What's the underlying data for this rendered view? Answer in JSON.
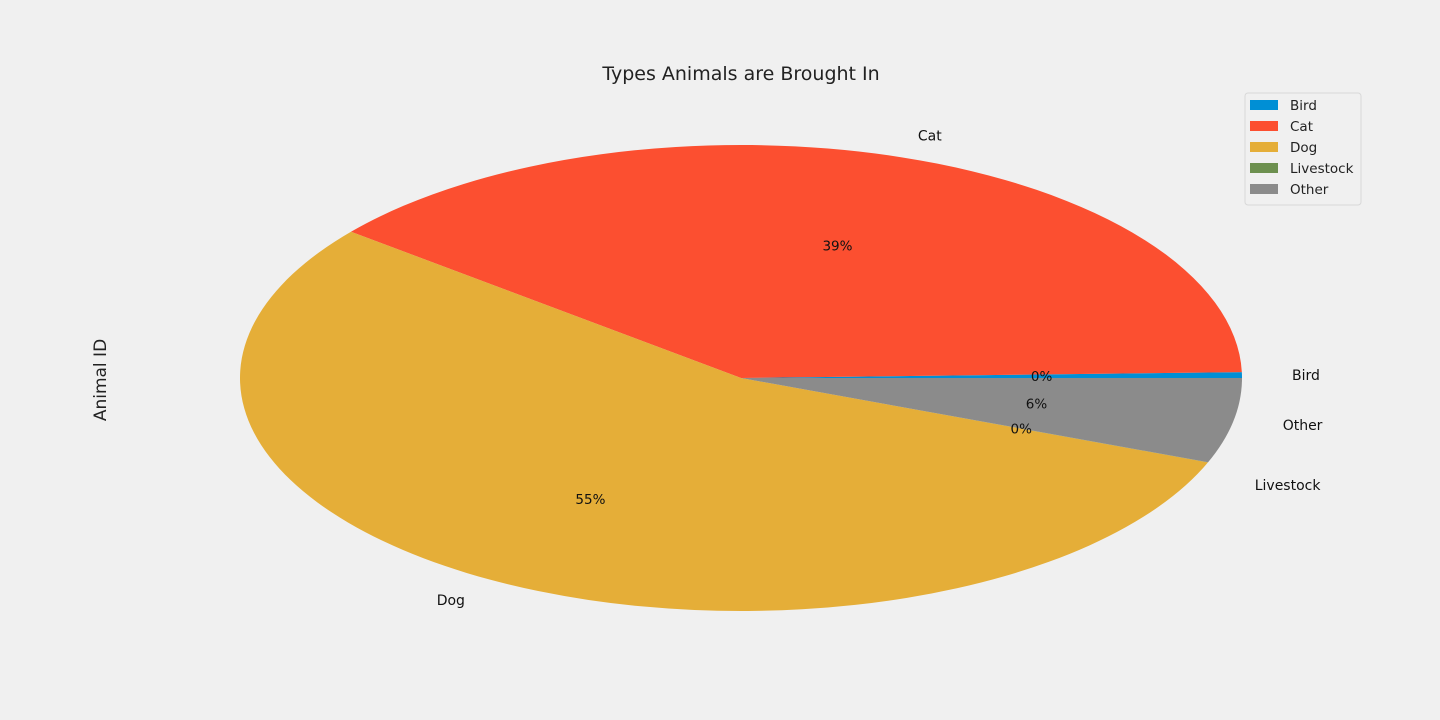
{
  "chart_data": {
    "type": "pie",
    "title": "Types Animals are Brought In",
    "ylabel": "Animal ID",
    "categories": [
      "Bird",
      "Cat",
      "Dog",
      "Livestock",
      "Other"
    ],
    "values": [
      0.4,
      38.8,
      54.9,
      0.01,
      5.89
    ],
    "percent_labels": [
      "0%",
      "39%",
      "55%",
      "0%",
      "6%"
    ],
    "colors": [
      "#008fd5",
      "#fc4f30",
      "#e5ae38",
      "#6d904f",
      "#8b8b8b"
    ],
    "legend": {
      "placement": "top-right",
      "entries": [
        "Bird",
        "Cat",
        "Dog",
        "Livestock",
        "Other"
      ]
    }
  }
}
